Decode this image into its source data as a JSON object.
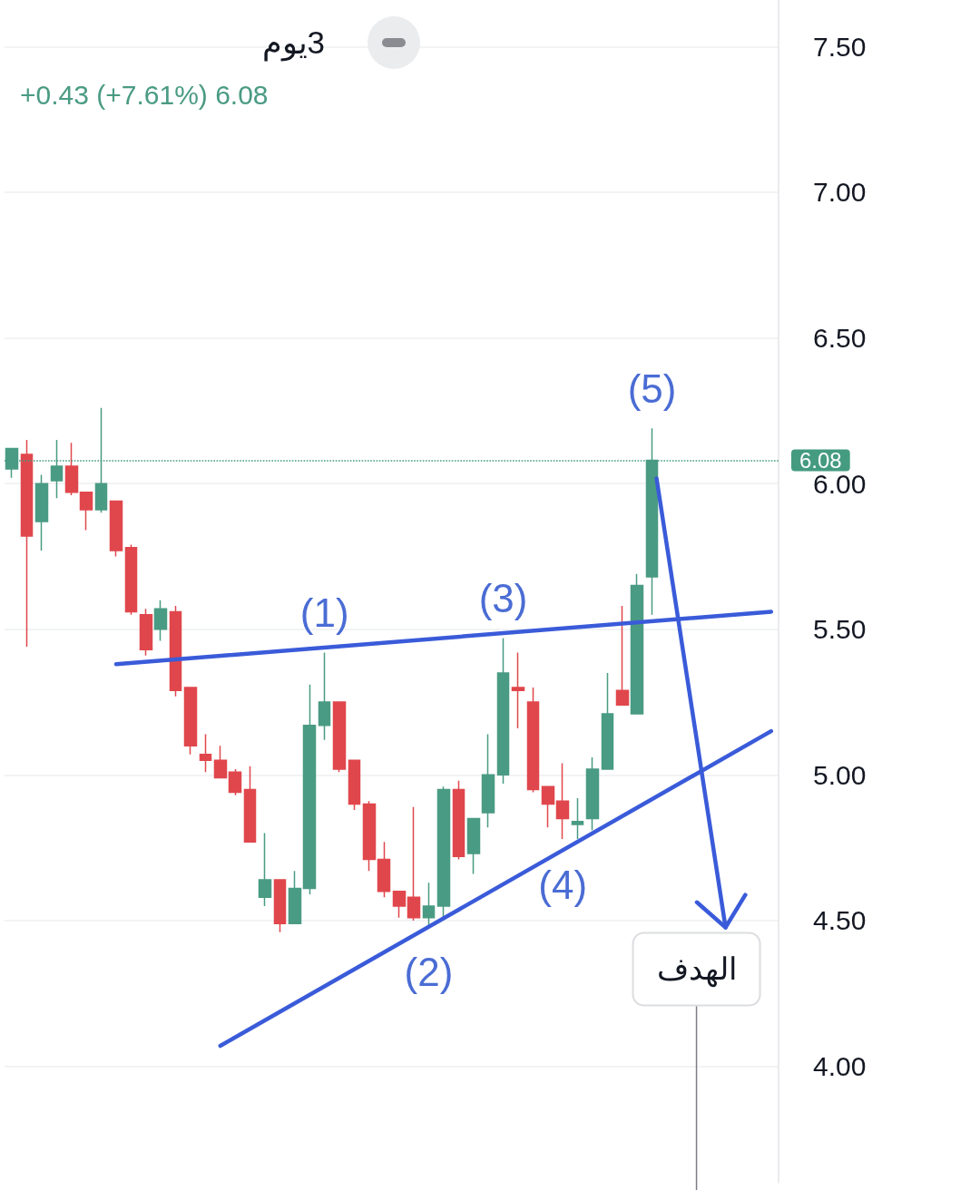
{
  "chart_data": {
    "type": "candlestick",
    "title": "3يوم",
    "subtitle": "+0.43 (+7.61%) 6.08",
    "categories": [
      null,
      null,
      null,
      null,
      null,
      null,
      null,
      null,
      null,
      null,
      null,
      null,
      null,
      null,
      null,
      null,
      null,
      null,
      null,
      null,
      null,
      null,
      null,
      null,
      null,
      null,
      null,
      null,
      null,
      null,
      null,
      null,
      null,
      null,
      null,
      null,
      null,
      null,
      null,
      null,
      null,
      null,
      null,
      null,
      null,
      null,
      null,
      null,
      null,
      null,
      null,
      null
    ],
    "series": [
      {
        "type": "candlestick",
        "ohlc": [
          [
            6.05,
            6.12,
            6.02,
            6.12
          ],
          [
            6.1,
            6.15,
            5.44,
            5.82
          ],
          [
            5.87,
            6.03,
            5.77,
            6.0
          ],
          [
            6.01,
            6.15,
            5.95,
            6.06
          ],
          [
            6.06,
            6.14,
            5.96,
            5.97
          ],
          [
            5.97,
            5.97,
            5.84,
            5.91
          ],
          [
            5.91,
            6.26,
            5.9,
            6.0
          ],
          [
            5.94,
            5.94,
            5.75,
            5.77
          ],
          [
            5.78,
            5.79,
            5.55,
            5.56
          ],
          [
            5.55,
            5.57,
            5.41,
            5.43
          ],
          [
            5.5,
            5.6,
            5.46,
            5.57
          ],
          [
            5.56,
            5.58,
            5.27,
            5.29
          ],
          [
            5.3,
            5.3,
            5.07,
            5.1
          ],
          [
            5.07,
            5.14,
            5.01,
            5.05
          ],
          [
            5.05,
            5.1,
            4.99,
            4.99
          ],
          [
            5.01,
            5.02,
            4.93,
            4.94
          ],
          [
            4.95,
            5.03,
            4.77,
            4.77
          ],
          [
            4.58,
            4.8,
            4.55,
            4.64
          ],
          [
            4.64,
            4.64,
            4.46,
            4.49
          ],
          [
            4.49,
            4.67,
            4.49,
            4.61
          ],
          [
            4.61,
            5.31,
            4.59,
            5.17
          ],
          [
            5.17,
            5.42,
            5.12,
            5.25
          ],
          [
            5.25,
            5.25,
            5.01,
            5.02
          ],
          [
            5.05,
            5.05,
            4.88,
            4.9
          ],
          [
            4.9,
            4.91,
            4.67,
            4.71
          ],
          [
            4.71,
            4.77,
            4.58,
            4.6
          ],
          [
            4.6,
            4.6,
            4.51,
            4.55
          ],
          [
            4.58,
            4.89,
            4.5,
            4.51
          ],
          [
            4.51,
            4.63,
            4.48,
            4.55
          ],
          [
            4.55,
            4.96,
            4.51,
            4.95
          ],
          [
            4.95,
            4.98,
            4.71,
            4.72
          ],
          [
            4.73,
            4.85,
            4.66,
            4.85
          ],
          [
            4.87,
            5.14,
            4.82,
            5.0
          ],
          [
            5.0,
            5.47,
            4.97,
            5.35
          ],
          [
            5.3,
            5.42,
            5.16,
            5.29
          ],
          [
            5.25,
            5.3,
            4.94,
            4.95
          ],
          [
            4.96,
            4.96,
            4.82,
            4.9
          ],
          [
            4.91,
            5.04,
            4.78,
            4.85
          ],
          [
            4.83,
            4.92,
            4.78,
            4.84
          ],
          [
            4.85,
            5.06,
            4.81,
            5.02
          ],
          [
            5.02,
            5.35,
            5.02,
            5.21
          ],
          [
            5.29,
            5.58,
            5.24,
            5.24
          ],
          [
            5.21,
            5.69,
            5.21,
            5.65
          ],
          [
            5.68,
            6.19,
            5.55,
            6.08
          ],
          null,
          null,
          null,
          null,
          null,
          null,
          null,
          null
        ],
        "colors": [
          "#4a9b83",
          "#e0474c",
          "#4a9b83",
          "#4a9b83",
          "#e0474c",
          "#e0474c",
          "#4a9b83",
          "#e0474c",
          "#e0474c",
          "#e0474c",
          "#4a9b83",
          "#e0474c",
          "#e0474c",
          "#e0474c",
          "#e0474c",
          "#e0474c",
          "#e0474c",
          "#4a9b83",
          "#e0474c",
          "#4a9b83",
          "#4a9b83",
          "#4a9b83",
          "#e0474c",
          "#e0474c",
          "#e0474c",
          "#e0474c",
          "#e0474c",
          "#e0474c",
          "#4a9b83",
          "#4a9b83",
          "#e0474c",
          "#4a9b83",
          "#4a9b83",
          "#4a9b83",
          "#e0474c",
          "#e0474c",
          "#e0474c",
          "#e0474c",
          "#4a9b83",
          "#4a9b83",
          "#4a9b83",
          "#e0474c",
          "#4a9b83",
          "#4a9b83",
          null,
          null,
          null,
          null,
          null,
          null,
          null,
          null
        ],
        "value_labels": [
          null,
          null,
          null,
          null,
          null,
          null,
          null,
          null,
          null,
          null,
          null,
          null,
          null,
          null,
          null,
          null,
          null,
          null,
          null,
          null,
          null,
          "(1)",
          null,
          null,
          null,
          null,
          null,
          null,
          "(2)",
          null,
          null,
          null,
          null,
          "(3)",
          null,
          null,
          null,
          "(4)",
          null,
          null,
          null,
          null,
          null,
          "(5)",
          null,
          null,
          null,
          null,
          null,
          null,
          null,
          null
        ]
      },
      {
        "type": "line",
        "color": "#3a5bd9",
        "values": [
          null,
          null,
          null,
          null,
          null,
          null,
          null,
          5.38,
          null,
          null,
          null,
          null,
          null,
          null,
          null,
          null,
          null,
          null,
          null,
          null,
          null,
          null,
          null,
          null,
          null,
          null,
          null,
          null,
          null,
          null,
          null,
          null,
          null,
          null,
          null,
          null,
          null,
          null,
          null,
          null,
          null,
          null,
          null,
          null,
          null,
          null,
          null,
          null,
          null,
          null,
          null,
          5.56
        ]
      },
      {
        "type": "line",
        "color": "#3a5bd9",
        "values": [
          null,
          null,
          null,
          null,
          null,
          null,
          null,
          null,
          null,
          null,
          null,
          null,
          null,
          null,
          4.07,
          null,
          null,
          null,
          null,
          null,
          null,
          null,
          null,
          null,
          null,
          null,
          null,
          null,
          null,
          null,
          null,
          null,
          null,
          null,
          null,
          null,
          null,
          null,
          null,
          null,
          null,
          null,
          null,
          null,
          null,
          null,
          null,
          null,
          null,
          null,
          null,
          5.15
        ]
      }
    ],
    "ylim": [
      3.6,
      7.66
    ],
    "yticks": [
      {
        "value": 4,
        "label": "4.00"
      },
      {
        "value": 4.5,
        "label": "4.50"
      },
      {
        "value": 5,
        "label": "5.00"
      },
      {
        "value": 5.5,
        "label": "5.50"
      },
      {
        "value": 6,
        "label": "6.00"
      },
      {
        "value": 6.5,
        "label": "6.50"
      },
      {
        "value": 7,
        "label": "7.00"
      },
      {
        "value": 7.5,
        "label": "7.50"
      }
    ],
    "grid": "y",
    "marker": "none",
    "ref_lines": [
      {
        "axis": "y",
        "value": 6.08,
        "label": "6.08",
        "color": "#459b80",
        "line_style": "dotted"
      }
    ],
    "annotations": [
      "الهدف"
    ]
  }
}
